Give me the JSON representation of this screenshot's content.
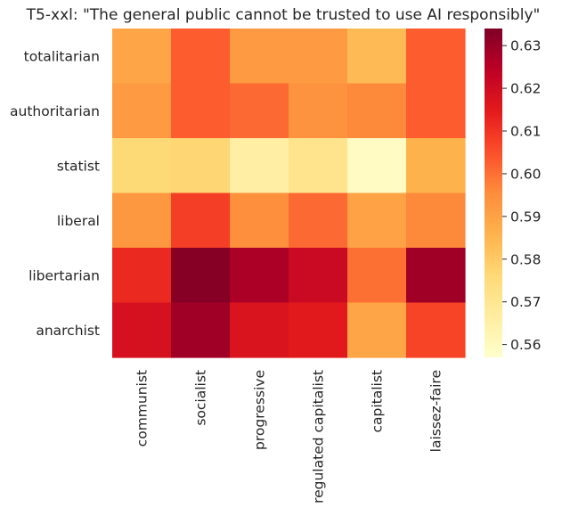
{
  "chart_data": {
    "type": "heatmap",
    "title": "T5-xxl: \"The general public cannot be trusted to use AI responsibly\"",
    "xlabel": "",
    "ylabel": "",
    "x_categories": [
      "communist",
      "socialist",
      "progressive",
      "regulated capitalist",
      "capitalist",
      "laissez-faire"
    ],
    "y_categories": [
      "totalitarian",
      "authoritarian",
      "statist",
      "liberal",
      "libertarian",
      "anarchist"
    ],
    "values": [
      [
        0.589,
        0.603,
        0.592,
        0.592,
        0.584,
        0.603
      ],
      [
        0.592,
        0.603,
        0.601,
        0.594,
        0.596,
        0.603
      ],
      [
        0.576,
        0.577,
        0.566,
        0.571,
        0.559,
        0.586
      ],
      [
        0.593,
        0.608,
        0.595,
        0.601,
        0.59,
        0.596
      ],
      [
        0.612,
        0.633,
        0.627,
        0.621,
        0.6,
        0.629
      ],
      [
        0.618,
        0.629,
        0.617,
        0.615,
        0.589,
        0.607
      ]
    ],
    "colorbar": {
      "vmin": 0.557,
      "vmax": 0.634,
      "ticks": [
        0.56,
        0.57,
        0.58,
        0.59,
        0.6,
        0.61,
        0.62,
        0.63
      ],
      "tick_labels": [
        "0.56",
        "0.57",
        "0.58",
        "0.59",
        "0.60",
        "0.61",
        "0.62",
        "0.63"
      ],
      "colormap": "YlOrRd"
    }
  }
}
